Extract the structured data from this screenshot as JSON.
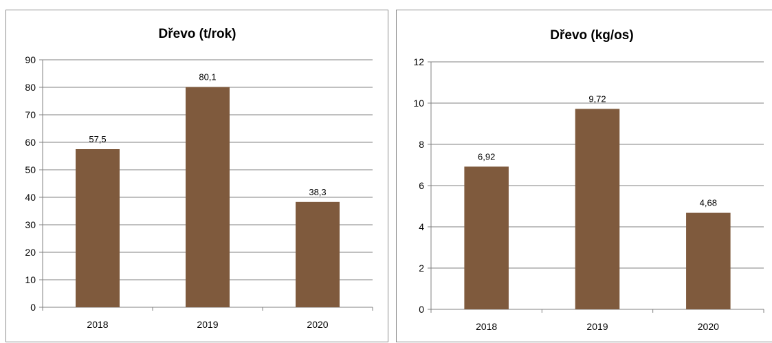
{
  "chart_data": [
    {
      "type": "bar",
      "title": "Dřevo (t/rok)",
      "categories": [
        "2018",
        "2019",
        "2020"
      ],
      "values": [
        57.5,
        80.1,
        38.3
      ],
      "data_labels": [
        "57,5",
        "80,1",
        "38,3"
      ],
      "ylim": [
        0,
        90
      ],
      "yticks": [
        0,
        10,
        20,
        30,
        40,
        50,
        60,
        70,
        80,
        90
      ],
      "ytick_labels": [
        "0",
        "10",
        "20",
        "30",
        "40",
        "50",
        "60",
        "70",
        "80",
        "90"
      ],
      "xlabel": "",
      "ylabel": "",
      "grid": true,
      "bar_color": "#7f5a3d"
    },
    {
      "type": "bar",
      "title": "Dřevo (kg/os)",
      "categories": [
        "2018",
        "2019",
        "2020"
      ],
      "values": [
        6.92,
        9.72,
        4.68
      ],
      "data_labels": [
        "6,92",
        "9,72",
        "4,68"
      ],
      "ylim": [
        0,
        12
      ],
      "yticks": [
        0,
        2,
        4,
        6,
        8,
        10,
        12
      ],
      "ytick_labels": [
        "0",
        "2",
        "4",
        "6",
        "8",
        "10",
        "12"
      ],
      "xlabel": "",
      "ylabel": "",
      "grid": true,
      "bar_color": "#7f5a3d"
    }
  ]
}
